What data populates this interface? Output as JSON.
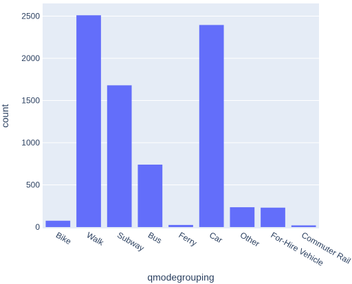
{
  "chart_data": {
    "type": "bar",
    "categories": [
      "Bike",
      "Walk",
      "Subway",
      "Bus",
      "Ferry",
      "Car",
      "Other",
      "For-Hire Vehicle",
      "Commuter Rail"
    ],
    "values": [
      75,
      2510,
      1680,
      740,
      25,
      2395,
      235,
      230,
      20
    ],
    "xlabel": "qmodegrouping",
    "ylabel": "count",
    "ylim": [
      0,
      2640
    ],
    "yticks": [
      0,
      500,
      1000,
      1500,
      2000,
      2500
    ],
    "ytick_labels": [
      "0",
      "500",
      "1000",
      "1500",
      "2000",
      "2500"
    ],
    "grid": true,
    "legend": "none",
    "colors": {
      "bar": "#636efa",
      "plot_bg": "#e5ecf6",
      "grid": "#ffffff",
      "text": "#2a3f5f"
    }
  }
}
